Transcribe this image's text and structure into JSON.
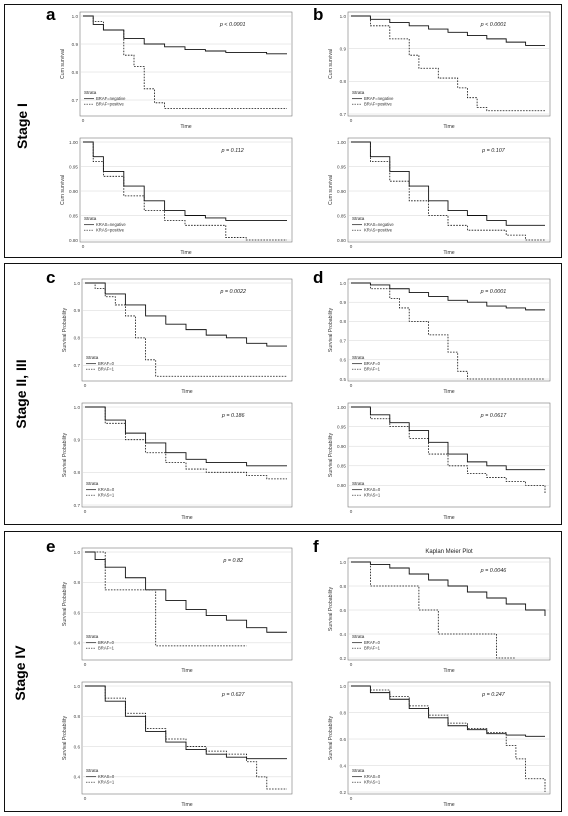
{
  "stages": [
    {
      "label": "Stage I",
      "top": 4,
      "height": 254
    },
    {
      "label": "Stage II, III",
      "top": 263,
      "height": 262
    },
    {
      "label": "Stage IV",
      "top": 531,
      "height": 281
    }
  ],
  "chart_data": [
    {
      "id": "a-top",
      "panel": "a",
      "type": "line",
      "ylabel": "Cum survival",
      "xlabel": "Time",
      "pvalue": "p < 0.0001",
      "ylim": [
        0.65,
        1.0
      ],
      "yticks": [
        "1.0",
        "0.9",
        "0.8",
        "0.7"
      ],
      "xticks": [
        "0"
      ],
      "legend": {
        "title": "Strata",
        "entries": [
          "BRAF=negative",
          "BRAF=positive"
        ]
      },
      "series": [
        {
          "name": "BRAF=negative",
          "style": "solid",
          "x": [
            0,
            0.05,
            0.1,
            0.2,
            0.3,
            0.4,
            0.5,
            0.6,
            0.7,
            0.8,
            0.9,
            1.0
          ],
          "y": [
            1.0,
            0.97,
            0.95,
            0.92,
            0.9,
            0.89,
            0.88,
            0.875,
            0.87,
            0.87,
            0.865,
            0.865
          ]
        },
        {
          "name": "BRAF=positive",
          "style": "dashed",
          "x": [
            0,
            0.05,
            0.1,
            0.15,
            0.2,
            0.25,
            0.3,
            0.35,
            0.4,
            0.45,
            0.55,
            1.0
          ],
          "y": [
            1.0,
            0.98,
            0.95,
            0.95,
            0.86,
            0.82,
            0.74,
            0.69,
            0.67,
            0.67,
            0.67,
            0.67
          ]
        }
      ]
    },
    {
      "id": "a-bottom",
      "panel": "a",
      "type": "line",
      "ylabel": "Cum survival",
      "xlabel": "Time",
      "pvalue": "p = 0.112",
      "ylim": [
        0.8,
        1.0
      ],
      "yticks": [
        "1.00",
        "0.95",
        "0.90",
        "0.85",
        "0.80"
      ],
      "xticks": [
        "0"
      ],
      "legend": {
        "title": "Strata",
        "entries": [
          "KRAS=negative",
          "KRAS=positive"
        ]
      },
      "series": [
        {
          "name": "KRAS=negative",
          "style": "solid",
          "x": [
            0,
            0.05,
            0.1,
            0.2,
            0.3,
            0.4,
            0.5,
            0.6,
            0.7,
            0.85,
            1.0
          ],
          "y": [
            1.0,
            0.97,
            0.94,
            0.91,
            0.88,
            0.86,
            0.85,
            0.845,
            0.84,
            0.84,
            0.84
          ]
        },
        {
          "name": "KRAS=positive",
          "style": "dashed",
          "x": [
            0,
            0.05,
            0.1,
            0.2,
            0.3,
            0.4,
            0.5,
            0.6,
            0.7,
            0.8,
            1.0
          ],
          "y": [
            1.0,
            0.96,
            0.93,
            0.89,
            0.86,
            0.84,
            0.83,
            0.83,
            0.805,
            0.8,
            0.8
          ]
        }
      ]
    },
    {
      "id": "b-top",
      "panel": "b",
      "type": "line",
      "ylabel": "Cum survival",
      "xlabel": "Time",
      "pvalue": "p < 0.0001",
      "ylim": [
        0.7,
        1.0
      ],
      "yticks": [
        "1.0",
        "0.9",
        "0.8",
        "0.7"
      ],
      "xticks": [
        "0"
      ],
      "legend": {
        "title": "Strata",
        "entries": [
          "BRAF=negative",
          "BRAF=positive"
        ]
      },
      "series": [
        {
          "name": "BRAF=negative",
          "style": "solid",
          "x": [
            0,
            0.1,
            0.2,
            0.3,
            0.4,
            0.5,
            0.6,
            0.7,
            0.8,
            0.9,
            1.0
          ],
          "y": [
            1.0,
            0.99,
            0.98,
            0.97,
            0.96,
            0.95,
            0.94,
            0.93,
            0.92,
            0.91,
            0.91
          ]
        },
        {
          "name": "BRAF=positive",
          "style": "dashed",
          "x": [
            0,
            0.1,
            0.2,
            0.3,
            0.35,
            0.45,
            0.55,
            0.6,
            0.65,
            0.7,
            1.0
          ],
          "y": [
            1.0,
            0.97,
            0.93,
            0.88,
            0.84,
            0.81,
            0.78,
            0.75,
            0.72,
            0.71,
            0.71
          ]
        }
      ]
    },
    {
      "id": "b-bottom",
      "panel": "b",
      "type": "line",
      "ylabel": "Cum survival",
      "xlabel": "Time",
      "pvalue": "p = 0.107",
      "ylim": [
        0.8,
        1.0
      ],
      "yticks": [
        "1.00",
        "0.95",
        "0.90",
        "0.85",
        "0.80"
      ],
      "xticks": [
        "0"
      ],
      "legend": {
        "title": "Strata",
        "entries": [
          "KRAS=negative",
          "KRAS=positive"
        ]
      },
      "series": [
        {
          "name": "KRAS=negative",
          "style": "solid",
          "x": [
            0,
            0.1,
            0.2,
            0.3,
            0.4,
            0.5,
            0.6,
            0.7,
            0.8,
            0.9,
            1.0
          ],
          "y": [
            1.0,
            0.97,
            0.94,
            0.91,
            0.88,
            0.86,
            0.85,
            0.84,
            0.83,
            0.83,
            0.83
          ]
        },
        {
          "name": "KRAS=positive",
          "style": "dashed",
          "x": [
            0,
            0.1,
            0.2,
            0.3,
            0.4,
            0.5,
            0.6,
            0.7,
            0.8,
            0.9,
            1.0
          ],
          "y": [
            1.0,
            0.96,
            0.92,
            0.88,
            0.85,
            0.83,
            0.82,
            0.82,
            0.81,
            0.8,
            0.8
          ]
        }
      ]
    },
    {
      "id": "c-top",
      "panel": "c",
      "type": "line",
      "ylabel": "Survival Probability",
      "xlabel": "Time",
      "pvalue": "p = 0.0022",
      "ylim": [
        0.65,
        1.0
      ],
      "yticks": [
        "1.0",
        "0.9",
        "0.8",
        "0.7"
      ],
      "xticks": [
        "0"
      ],
      "legend": {
        "title": "Strata",
        "entries": [
          "BRAF=0",
          "BRAF=1"
        ]
      },
      "series": [
        {
          "name": "BRAF=0",
          "style": "solid",
          "x": [
            0,
            0.1,
            0.2,
            0.3,
            0.4,
            0.5,
            0.6,
            0.7,
            0.8,
            0.9,
            1.0
          ],
          "y": [
            1.0,
            0.96,
            0.92,
            0.88,
            0.85,
            0.83,
            0.81,
            0.8,
            0.78,
            0.77,
            0.77
          ]
        },
        {
          "name": "BRAF=1",
          "style": "dashed",
          "x": [
            0,
            0.05,
            0.1,
            0.15,
            0.2,
            0.25,
            0.3,
            0.35,
            0.4,
            1.0
          ],
          "y": [
            1.0,
            0.98,
            0.95,
            0.92,
            0.88,
            0.8,
            0.72,
            0.66,
            0.66,
            0.66
          ]
        }
      ]
    },
    {
      "id": "c-bottom",
      "panel": "c",
      "type": "line",
      "ylabel": "Survival Probability",
      "xlabel": "Time",
      "pvalue": "p = 0.186",
      "ylim": [
        0.7,
        1.0
      ],
      "yticks": [
        "1.0",
        "0.9",
        "0.8",
        "0.7"
      ],
      "xticks": [
        "0"
      ],
      "legend": {
        "title": "Strata",
        "entries": [
          "KRAS=0",
          "KRAS=1"
        ]
      },
      "series": [
        {
          "name": "KRAS=0",
          "style": "solid",
          "x": [
            0,
            0.1,
            0.2,
            0.3,
            0.4,
            0.5,
            0.6,
            0.7,
            0.8,
            0.9,
            1.0
          ],
          "y": [
            1.0,
            0.96,
            0.92,
            0.89,
            0.86,
            0.84,
            0.83,
            0.83,
            0.82,
            0.82,
            0.82
          ]
        },
        {
          "name": "KRAS=1",
          "style": "dashed",
          "x": [
            0,
            0.1,
            0.2,
            0.3,
            0.4,
            0.5,
            0.6,
            0.7,
            0.8,
            0.9,
            1.0
          ],
          "y": [
            1.0,
            0.95,
            0.9,
            0.86,
            0.83,
            0.81,
            0.8,
            0.8,
            0.79,
            0.78,
            0.78
          ]
        }
      ]
    },
    {
      "id": "d-top",
      "panel": "d",
      "type": "line",
      "ylabel": "Survival Probability",
      "xlabel": "Time",
      "pvalue": "p = 0.0001",
      "ylim": [
        0.5,
        1.0
      ],
      "yticks": [
        "1.0",
        "0.9",
        "0.8",
        "0.7",
        "0.6",
        "0.5"
      ],
      "xticks": [
        "0"
      ],
      "legend": {
        "title": "Strata",
        "entries": [
          "BRAF=0",
          "BRAF=1"
        ]
      },
      "series": [
        {
          "name": "BRAF=0",
          "style": "solid",
          "x": [
            0,
            0.1,
            0.2,
            0.3,
            0.4,
            0.5,
            0.6,
            0.7,
            0.8,
            0.9,
            1.0
          ],
          "y": [
            1.0,
            0.99,
            0.97,
            0.95,
            0.93,
            0.91,
            0.9,
            0.88,
            0.87,
            0.86,
            0.86
          ]
        },
        {
          "name": "BRAF=1",
          "style": "dashed",
          "x": [
            0,
            0.1,
            0.2,
            0.25,
            0.3,
            0.4,
            0.5,
            0.55,
            0.6,
            1.0
          ],
          "y": [
            1.0,
            0.97,
            0.92,
            0.87,
            0.8,
            0.73,
            0.64,
            0.54,
            0.5,
            0.5
          ]
        }
      ]
    },
    {
      "id": "d-bottom",
      "panel": "d",
      "type": "line",
      "ylabel": "Survival Probability",
      "xlabel": "Time",
      "pvalue": "p = 0.0617",
      "ylim": [
        0.75,
        1.0
      ],
      "yticks": [
        "1.00",
        "0.95",
        "0.90",
        "0.85",
        "0.80"
      ],
      "xticks": [
        "0"
      ],
      "legend": {
        "title": "Strata",
        "entries": [
          "KRAS=0",
          "KRAS=1"
        ]
      },
      "series": [
        {
          "name": "KRAS=0",
          "style": "solid",
          "x": [
            0,
            0.1,
            0.2,
            0.3,
            0.4,
            0.5,
            0.6,
            0.7,
            0.8,
            0.9,
            1.0
          ],
          "y": [
            1.0,
            0.98,
            0.96,
            0.94,
            0.91,
            0.88,
            0.86,
            0.85,
            0.84,
            0.84,
            0.84
          ]
        },
        {
          "name": "KRAS=1",
          "style": "dashed",
          "x": [
            0,
            0.1,
            0.2,
            0.3,
            0.4,
            0.5,
            0.6,
            0.7,
            0.8,
            0.9,
            1.0
          ],
          "y": [
            1.0,
            0.97,
            0.95,
            0.92,
            0.88,
            0.85,
            0.83,
            0.82,
            0.81,
            0.8,
            0.78
          ]
        }
      ]
    },
    {
      "id": "e-top",
      "panel": "e",
      "type": "line",
      "ylabel": "Survival Probability",
      "xlabel": "Time",
      "pvalue": "p = 0.82",
      "ylim": [
        0.3,
        1.0
      ],
      "yticks": [
        "1.0",
        "0.8",
        "0.6",
        "0.4"
      ],
      "xticks": [
        "0"
      ],
      "legend": {
        "title": "Strata",
        "entries": [
          "BRAF=0",
          "BRAF=1"
        ]
      },
      "series": [
        {
          "name": "BRAF=0",
          "style": "solid",
          "x": [
            0,
            0.05,
            0.1,
            0.2,
            0.3,
            0.4,
            0.5,
            0.6,
            0.7,
            0.8,
            0.9,
            1.0
          ],
          "y": [
            1.0,
            0.95,
            0.9,
            0.83,
            0.75,
            0.68,
            0.62,
            0.58,
            0.55,
            0.5,
            0.47,
            0.47
          ]
        },
        {
          "name": "BRAF=1",
          "style": "dashed",
          "x": [
            0,
            0.05,
            0.1,
            0.3,
            0.35,
            0.8
          ],
          "y": [
            1.0,
            1.0,
            0.75,
            0.75,
            0.38,
            0.38
          ]
        }
      ]
    },
    {
      "id": "e-bottom",
      "panel": "e",
      "type": "line",
      "ylabel": "Survival Probability",
      "xlabel": "Time",
      "pvalue": "p = 0.627",
      "ylim": [
        0.3,
        1.0
      ],
      "yticks": [
        "1.0",
        "0.8",
        "0.6",
        "0.4"
      ],
      "xticks": [
        "0"
      ],
      "legend": {
        "title": "Strata",
        "entries": [
          "KRAS=0",
          "KRAS=1"
        ]
      },
      "series": [
        {
          "name": "KRAS=0",
          "style": "solid",
          "x": [
            0,
            0.1,
            0.2,
            0.3,
            0.4,
            0.5,
            0.6,
            0.7,
            0.8,
            0.9,
            1.0
          ],
          "y": [
            1.0,
            0.9,
            0.8,
            0.7,
            0.63,
            0.58,
            0.55,
            0.53,
            0.52,
            0.52,
            0.52
          ]
        },
        {
          "name": "KRAS=1",
          "style": "dashed",
          "x": [
            0,
            0.1,
            0.2,
            0.3,
            0.4,
            0.5,
            0.6,
            0.7,
            0.8,
            0.85,
            0.9,
            1.0
          ],
          "y": [
            1.0,
            0.92,
            0.82,
            0.72,
            0.65,
            0.6,
            0.57,
            0.55,
            0.5,
            0.4,
            0.32,
            0.32
          ]
        }
      ]
    },
    {
      "id": "f-top",
      "panel": "f",
      "type": "line",
      "title": "Kaplan Meier Plot",
      "ylabel": "Survival Probability",
      "xlabel": "Time",
      "pvalue": "p = 0.0046",
      "ylim": [
        0.2,
        1.0
      ],
      "yticks": [
        "1.0",
        "0.8",
        "0.6",
        "0.4",
        "0.2"
      ],
      "xticks": [
        "0"
      ],
      "legend": {
        "title": "Strata",
        "entries": [
          "BRAF=0",
          "BRAF=1"
        ]
      },
      "series": [
        {
          "name": "BRAF=0",
          "style": "solid",
          "x": [
            0,
            0.1,
            0.2,
            0.3,
            0.4,
            0.5,
            0.6,
            0.7,
            0.8,
            0.9,
            1.0
          ],
          "y": [
            1.0,
            0.98,
            0.95,
            0.9,
            0.85,
            0.8,
            0.75,
            0.7,
            0.65,
            0.6,
            0.55
          ]
        },
        {
          "name": "BRAF=1",
          "style": "dashed",
          "x": [
            0,
            0.1,
            0.2,
            0.35,
            0.45,
            0.6,
            0.75,
            0.85
          ],
          "y": [
            1.0,
            0.8,
            0.8,
            0.6,
            0.4,
            0.4,
            0.2,
            0.2
          ]
        }
      ]
    },
    {
      "id": "f-bottom",
      "panel": "f",
      "type": "line",
      "ylabel": "Survival Probability",
      "xlabel": "Time",
      "pvalue": "p = 0.247",
      "ylim": [
        0.2,
        1.0
      ],
      "yticks": [
        "1.0",
        "0.8",
        "0.6",
        "0.4",
        "0.2"
      ],
      "xticks": [
        "0"
      ],
      "legend": {
        "title": "Strata",
        "entries": [
          "KRAS=0",
          "KRAS=1"
        ]
      },
      "series": [
        {
          "name": "KRAS=0",
          "style": "solid",
          "x": [
            0,
            0.1,
            0.2,
            0.3,
            0.4,
            0.5,
            0.6,
            0.7,
            0.8,
            0.9,
            1.0
          ],
          "y": [
            1.0,
            0.95,
            0.9,
            0.83,
            0.76,
            0.7,
            0.67,
            0.64,
            0.63,
            0.62,
            0.62
          ]
        },
        {
          "name": "KRAS=1",
          "style": "dashed",
          "x": [
            0,
            0.1,
            0.2,
            0.3,
            0.4,
            0.5,
            0.6,
            0.7,
            0.8,
            0.85,
            0.9,
            1.0
          ],
          "y": [
            1.0,
            0.97,
            0.92,
            0.85,
            0.78,
            0.72,
            0.68,
            0.65,
            0.55,
            0.45,
            0.3,
            0.2
          ]
        }
      ]
    }
  ]
}
